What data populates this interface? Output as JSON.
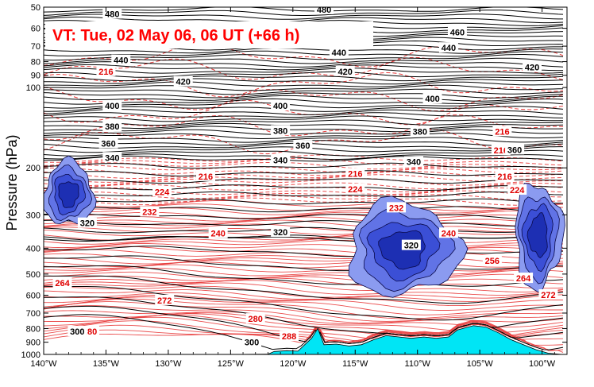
{
  "chart_data": {
    "type": "cross-section",
    "title": "VT:  Tue, 02 May 06, 06 UT (+66 h)",
    "ylabel": "Pressure (hPa)",
    "y_scale": "log",
    "y_reversed": true,
    "ylim": [
      1000,
      50
    ],
    "y_ticks": [
      50,
      60,
      70,
      80,
      90,
      100,
      200,
      300,
      400,
      500,
      600,
      700,
      800,
      900,
      1000
    ],
    "xlim": [
      -140,
      -98
    ],
    "x_ticks": [
      -140,
      -135,
      -130,
      -125,
      -120,
      -115,
      -110,
      -105,
      -100
    ],
    "x_tick_labels": [
      "140°W",
      "135°W",
      "130°W",
      "125°W",
      "120°W",
      "115°W",
      "110°W",
      "105°W",
      "100°W"
    ],
    "theta_contours_K": [
      {
        "level": "480",
        "lon": -134.5,
        "p": 53
      },
      {
        "level": "480",
        "lon": -117.5,
        "p": 51
      },
      {
        "level": "460",
        "lon": -106.8,
        "p": 62
      },
      {
        "level": "440",
        "lon": -133.8,
        "p": 79
      },
      {
        "level": "440",
        "lon": -116.3,
        "p": 74
      },
      {
        "level": "440",
        "lon": -107.5,
        "p": 71
      },
      {
        "level": "420",
        "lon": -128.8,
        "p": 95
      },
      {
        "level": "420",
        "lon": -115.8,
        "p": 87
      },
      {
        "level": "420",
        "lon": -100.8,
        "p": 84
      },
      {
        "level": "400",
        "lon": -134.5,
        "p": 117
      },
      {
        "level": "400",
        "lon": -121.0,
        "p": 117
      },
      {
        "level": "400",
        "lon": -108.8,
        "p": 110
      },
      {
        "level": "380",
        "lon": -134.5,
        "p": 140
      },
      {
        "level": "380",
        "lon": -121.0,
        "p": 145
      },
      {
        "level": "380",
        "lon": -109.8,
        "p": 146
      },
      {
        "level": "360",
        "lon": -134.8,
        "p": 162
      },
      {
        "level": "360",
        "lon": -119.2,
        "p": 165
      },
      {
        "level": "360",
        "lon": -102.2,
        "p": 171
      },
      {
        "level": "340",
        "lon": -134.5,
        "p": 183
      },
      {
        "level": "340",
        "lon": -121.0,
        "p": 187
      },
      {
        "level": "340",
        "lon": -110.3,
        "p": 190
      },
      {
        "level": "320",
        "lon": -136.5,
        "p": 322
      },
      {
        "level": "320",
        "lon": -121.0,
        "p": 348
      },
      {
        "level": "320",
        "lon": -110.5,
        "p": 390
      },
      {
        "level": "300",
        "lon": -137.3,
        "p": 820
      },
      {
        "level": "300",
        "lon": -123.3,
        "p": 900
      }
    ],
    "temperature_contours_K": [
      {
        "level": "216",
        "lon": -135.0,
        "p": 87
      },
      {
        "level": "216",
        "lon": -127.0,
        "p": 215
      },
      {
        "level": "216",
        "lon": -115.0,
        "p": 210
      },
      {
        "level": "216",
        "lon": -103.2,
        "p": 146
      },
      {
        "level": "216",
        "lon": -103.0,
        "p": 215
      },
      {
        "level": "216",
        "lon": -103.3,
        "p": 172
      },
      {
        "level": "224",
        "lon": -130.5,
        "p": 246
      },
      {
        "level": "224",
        "lon": -115.0,
        "p": 240
      },
      {
        "level": "224",
        "lon": -102.0,
        "p": 242
      },
      {
        "level": "232",
        "lon": -131.5,
        "p": 292
      },
      {
        "level": "232",
        "lon": -111.7,
        "p": 282
      },
      {
        "level": "240",
        "lon": -126.0,
        "p": 352
      },
      {
        "level": "240",
        "lon": -107.5,
        "p": 351
      },
      {
        "level": "256",
        "lon": -104.0,
        "p": 445
      },
      {
        "level": "264",
        "lon": -138.5,
        "p": 540
      },
      {
        "level": "264",
        "lon": -101.5,
        "p": 518
      },
      {
        "level": "272",
        "lon": -130.3,
        "p": 627
      },
      {
        "level": "272",
        "lon": -99.5,
        "p": 598
      },
      {
        "level": "280",
        "lon": -123.0,
        "p": 735
      },
      {
        "level": "280",
        "lon": -136.3,
        "p": 820
      },
      {
        "level": "288",
        "lon": -120.3,
        "p": 855
      }
    ],
    "cloud_regions": [
      {
        "lon_range": [
          -140,
          -136
        ],
        "p_range": [
          190,
          330
        ]
      },
      {
        "lon_range": [
          -115.6,
          -106.7
        ],
        "p_range": [
          270,
          600
        ]
      },
      {
        "lon_range": [
          -102.2,
          -98.4
        ],
        "p_range": [
          230,
          560
        ]
      }
    ],
    "terrain_surface": {
      "lon": [
        -140,
        -125,
        -122,
        -121.5,
        -120.5,
        -119.6,
        -118.5,
        -118.0,
        -117.5,
        -116.5,
        -115.5,
        -114.5,
        -113.5,
        -112.5,
        -111.5,
        -110.5,
        -109.5,
        -108.5,
        -107.5,
        -106.8,
        -105.5,
        -104.5,
        -103.5,
        -102.5,
        -101.5,
        -100.5,
        -99.5,
        -98.4
      ],
      "p_hPa": [
        1012,
        1007,
        998,
        975,
        968,
        972,
        870,
        800,
        920,
        915,
        930,
        920,
        880,
        850,
        860,
        870,
        860,
        870,
        860,
        810,
        780,
        790,
        830,
        880,
        920,
        960,
        990,
        1000
      ]
    }
  }
}
